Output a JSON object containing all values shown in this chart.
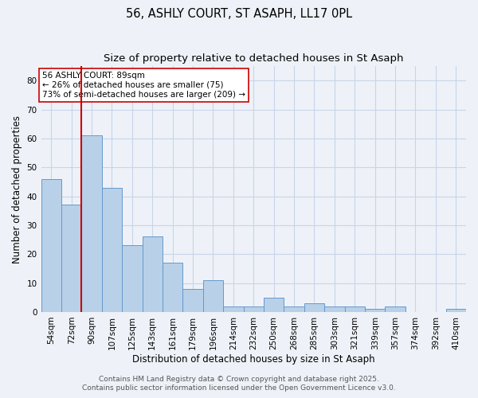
{
  "title1": "56, ASHLY COURT, ST ASAPH, LL17 0PL",
  "title2": "Size of property relative to detached houses in St Asaph",
  "xlabel": "Distribution of detached houses by size in St Asaph",
  "ylabel": "Number of detached properties",
  "bar_labels": [
    "54sqm",
    "72sqm",
    "90sqm",
    "107sqm",
    "125sqm",
    "143sqm",
    "161sqm",
    "179sqm",
    "196sqm",
    "214sqm",
    "232sqm",
    "250sqm",
    "268sqm",
    "285sqm",
    "303sqm",
    "321sqm",
    "339sqm",
    "357sqm",
    "374sqm",
    "392sqm",
    "410sqm"
  ],
  "bar_values": [
    46,
    37,
    61,
    43,
    23,
    26,
    17,
    8,
    11,
    2,
    2,
    5,
    2,
    3,
    2,
    2,
    1,
    2,
    0,
    0,
    1
  ],
  "bar_color": "#b8d0e8",
  "bar_edgecolor": "#6699cc",
  "bar_linewidth": 0.7,
  "grid_color": "#c8d4e8",
  "background_color": "#eef2f8",
  "red_line_x": 2,
  "red_line_color": "#cc0000",
  "annotation_text": "56 ASHLY COURT: 89sqm\n← 26% of detached houses are smaller (75)\n73% of semi-detached houses are larger (209) →",
  "annotation_box_edgecolor": "#cc0000",
  "annotation_box_facecolor": "#ffffff",
  "ylim": [
    0,
    85
  ],
  "yticks": [
    0,
    10,
    20,
    30,
    40,
    50,
    60,
    70,
    80
  ],
  "footer1": "Contains HM Land Registry data © Crown copyright and database right 2025.",
  "footer2": "Contains public sector information licensed under the Open Government Licence v3.0.",
  "title_fontsize": 10.5,
  "subtitle_fontsize": 9.5,
  "axis_label_fontsize": 8.5,
  "tick_fontsize": 7.5,
  "footer_fontsize": 6.5,
  "annot_fontsize": 7.5
}
